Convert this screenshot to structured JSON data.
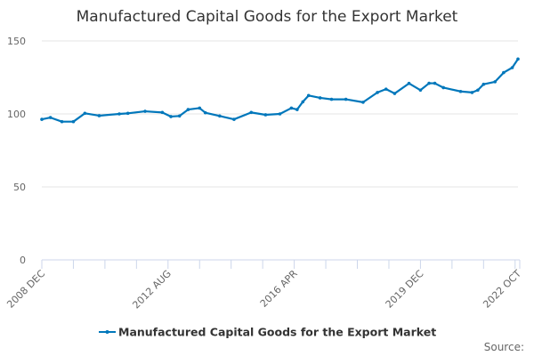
{
  "chart_data": {
    "type": "line",
    "title": "Manufactured Capital Goods for the Export Market",
    "xlabel": "",
    "ylabel": "",
    "ylim": [
      0,
      150
    ],
    "yticks": [
      0,
      50,
      100,
      150
    ],
    "xlim": [
      "2008-12",
      "2022-10"
    ],
    "xtick_labels": [
      "2008 DEC",
      "2012 AUG",
      "2016 APR",
      "2019 DEC",
      "2022 OCT"
    ],
    "xtick_label_dates": [
      "2008-12",
      "2012-08",
      "2016-04",
      "2019-12",
      "2022-10"
    ],
    "grid": "horizontal",
    "legend_position": "bottom",
    "color": "#0077bb",
    "series": [
      {
        "name": "Manufactured Capital Goods for the Export Market",
        "x": [
          "2008-12",
          "2009-03",
          "2009-07",
          "2009-11",
          "2010-03",
          "2010-08",
          "2011-03",
          "2011-06",
          "2011-12",
          "2012-06",
          "2012-09",
          "2012-12",
          "2013-03",
          "2013-07",
          "2013-09",
          "2014-02",
          "2014-07",
          "2015-01",
          "2015-06",
          "2015-11",
          "2016-03",
          "2016-05",
          "2016-07",
          "2016-09",
          "2017-01",
          "2017-05",
          "2017-10",
          "2018-04",
          "2018-09",
          "2018-12",
          "2019-03",
          "2019-08",
          "2019-12",
          "2020-03",
          "2020-05",
          "2020-08",
          "2021-02",
          "2021-06",
          "2021-08",
          "2021-10",
          "2022-02",
          "2022-05",
          "2022-08",
          "2022-10"
        ],
        "values": [
          96.3,
          97.5,
          94.7,
          94.7,
          100.4,
          98.8,
          100,
          100.4,
          101.8,
          101,
          98.2,
          98.6,
          103,
          104,
          100.8,
          98.6,
          96.3,
          101,
          99.4,
          100,
          104,
          103,
          108.3,
          112.6,
          111,
          110,
          110,
          108,
          114.7,
          117,
          114,
          120.9,
          116.3,
          121,
          121,
          118,
          115.4,
          114.7,
          116.3,
          120.3,
          122,
          128.3,
          131.7,
          137.6
        ]
      }
    ]
  },
  "legend": {
    "label": "Manufactured Capital Goods for the Export Market"
  },
  "source": {
    "label": "Source:"
  }
}
